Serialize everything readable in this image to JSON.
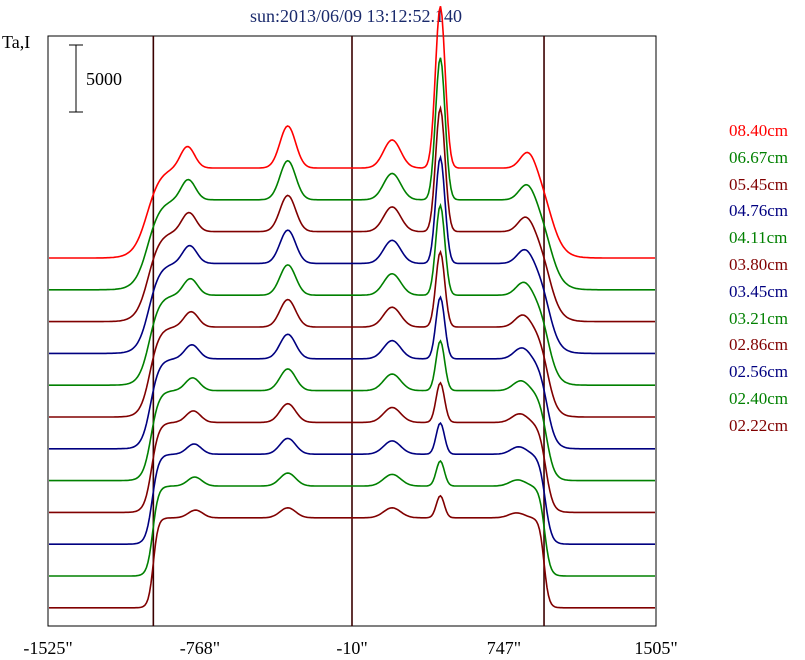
{
  "chart_data": {
    "type": "line",
    "title": "sun:2013/06/09 13:12:52.140",
    "ylabel": "Ta,I",
    "scale_bar_label": "5000",
    "xlim": [
      -1525,
      1505
    ],
    "x_ticks": [
      -1525,
      -768,
      -10,
      747,
      1505
    ],
    "x_tick_labels": [
      "-1525\"",
      "-768\"",
      "-10\"",
      "747\"",
      "1505\""
    ],
    "vertical_lines": [
      -1000,
      -10,
      947
    ],
    "series": [
      {
        "name": "08.40cm",
        "color": "#ff0000"
      },
      {
        "name": "06.67cm",
        "color": "#008000"
      },
      {
        "name": "05.45cm",
        "color": "#800000"
      },
      {
        "name": "04.76cm",
        "color": "#000080"
      },
      {
        "name": "04.11cm",
        "color": "#008000"
      },
      {
        "name": "03.80cm",
        "color": "#800000"
      },
      {
        "name": "03.45cm",
        "color": "#000080"
      },
      {
        "name": "03.21cm",
        "color": "#008000"
      },
      {
        "name": "02.86cm",
        "color": "#800000"
      },
      {
        "name": "02.56cm",
        "color": "#000080"
      },
      {
        "name": "02.40cm",
        "color": "#008000"
      },
      {
        "name": "02.22cm",
        "color": "#800000"
      }
    ]
  }
}
